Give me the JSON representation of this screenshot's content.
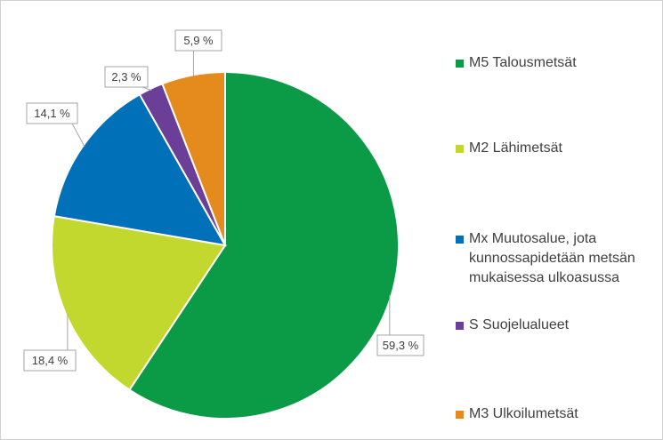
{
  "chart_data": {
    "type": "pie",
    "categories": [
      "M5 Talousmetsät",
      "M2 Lähimetsät",
      "Mx Muutosalue, jota kunnossapidetään metsän mukaisessa ulkoasussa",
      "S Suojelualueet",
      "M3 Ulkoilumetsät"
    ],
    "values": [
      59.3,
      18.4,
      14.1,
      2.3,
      5.9
    ],
    "value_labels": [
      "59,3 %",
      "18,4 %",
      "14,1 %",
      "2,3 %",
      "5,9 %"
    ],
    "colors": [
      "#0b9a46",
      "#c3d82e",
      "#0070b8",
      "#6b3f97",
      "#e58a1c"
    ],
    "legend": "right"
  }
}
